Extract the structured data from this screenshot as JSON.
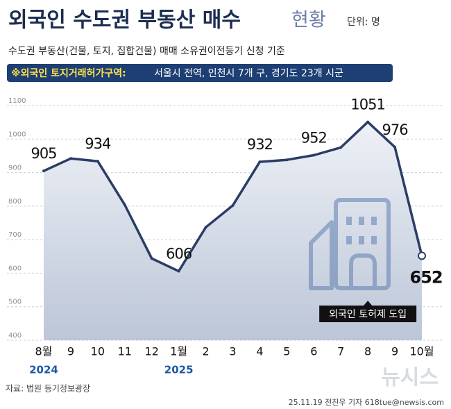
{
  "chart_data": {
    "type": "line",
    "title": "외국인 수도권 부동산 매수",
    "title_suffix": "현황",
    "unit": "단위: 명",
    "subtitle": "수도권 부동산(건물, 토지, 집합건물) 매매 소유권이전등기 신청 기준",
    "note_label": "※외국인 토지거래허가구역:",
    "note_text": "서울시 전역, 인천시 7개 구, 경기도 23개 시군",
    "categories": [
      "8월",
      "9",
      "10",
      "11",
      "12",
      "1월",
      "2",
      "3",
      "4",
      "5",
      "6",
      "7",
      "8",
      "9",
      "10월"
    ],
    "year_labels": [
      "2024",
      null,
      null,
      null,
      null,
      "2025",
      null,
      null,
      null,
      null,
      null,
      null,
      null,
      null,
      null
    ],
    "values": [
      905,
      942,
      934,
      804,
      644,
      606,
      737,
      802,
      932,
      938,
      952,
      975,
      1051,
      976,
      652
    ],
    "value_labels": [
      "905",
      null,
      "934",
      null,
      null,
      "606",
      null,
      null,
      "932",
      null,
      "952",
      null,
      "1051",
      "976",
      "652"
    ],
    "color": "#2b3d66",
    "ylim": [
      400,
      1100
    ],
    "yticks": [
      400,
      500,
      600,
      700,
      800,
      900,
      1000,
      1100
    ],
    "grid": true,
    "annotation": {
      "text": "외국인 토허제 도입",
      "index": 12
    },
    "source": "자료: 법원 등기정보광장",
    "credit": "25.11.19 전진우 기자 618tue@newsis.com",
    "logo": "뉴시스"
  }
}
